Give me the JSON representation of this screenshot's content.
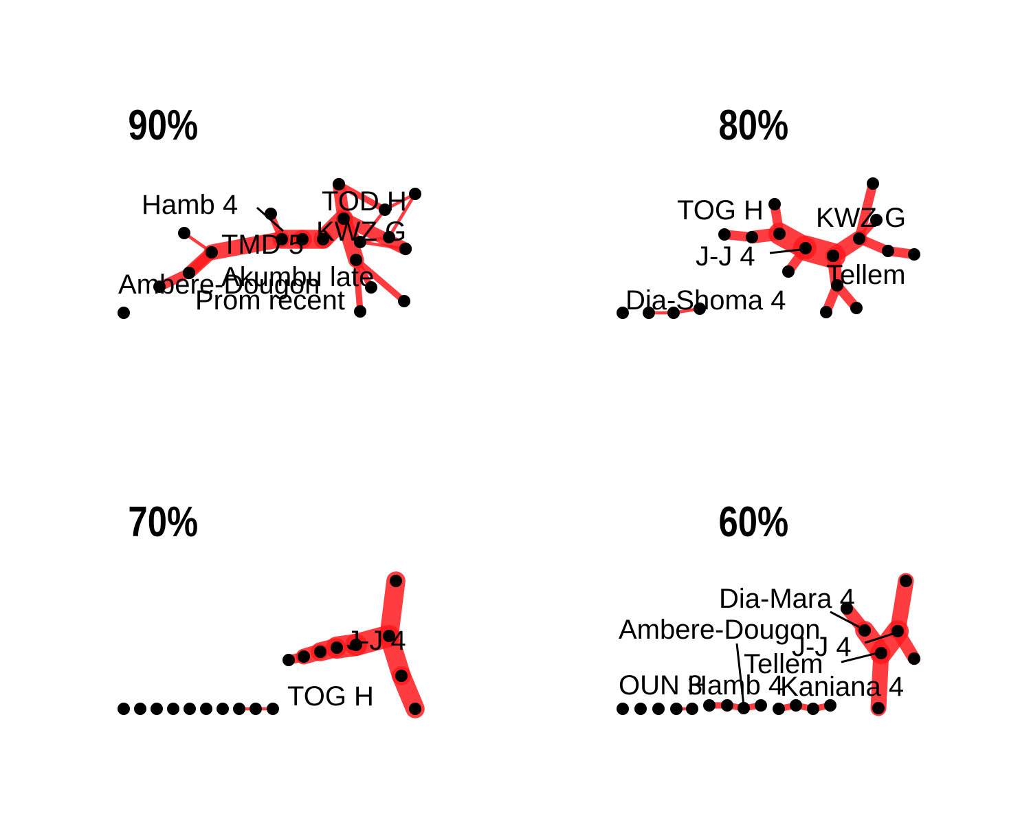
{
  "panels": [
    {
      "id": "p90",
      "title": "90%",
      "nodes": [
        {
          "id": "a1"
        },
        {
          "id": "a2"
        },
        {
          "id": "a3"
        },
        {
          "id": "a4"
        },
        {
          "id": "a5"
        },
        {
          "id": "a6"
        },
        {
          "id": "a7"
        },
        {
          "id": "a8"
        },
        {
          "id": "a9"
        },
        {
          "id": "a10"
        },
        {
          "id": "a11"
        },
        {
          "id": "a12"
        },
        {
          "id": "a13"
        },
        {
          "id": "a14"
        },
        {
          "id": "a15"
        },
        {
          "id": "a16"
        },
        {
          "id": "a17"
        },
        {
          "id": "a18"
        },
        {
          "id": "a19"
        },
        {
          "id": "a20"
        },
        {
          "id": "a21"
        },
        {
          "id": "a22"
        }
      ],
      "edges": [
        {
          "s": "a2",
          "t": "a6",
          "w": 1
        },
        {
          "s": "a3",
          "t": "a6",
          "w": 3
        },
        {
          "s": "a4",
          "t": "a5",
          "w": 3
        },
        {
          "s": "a5",
          "t": "a6",
          "w": 4
        },
        {
          "s": "a6",
          "t": "a8",
          "w": 5
        },
        {
          "s": "a8",
          "t": "a9",
          "w": 6
        },
        {
          "s": "a9",
          "t": "a10",
          "w": 6
        },
        {
          "s": "a10",
          "t": "a11",
          "w": 6
        },
        {
          "s": "a7",
          "t": "a8",
          "w": 2
        },
        {
          "s": "a11",
          "t": "a12",
          "w": 4
        },
        {
          "s": "a12",
          "t": "a13",
          "w": 2
        },
        {
          "s": "a13",
          "t": "a14",
          "w": 1
        },
        {
          "s": "a14",
          "t": "a15",
          "w": 1
        },
        {
          "s": "a15",
          "t": "a16",
          "w": 1
        },
        {
          "s": "a16",
          "t": "a13",
          "w": 1
        },
        {
          "s": "a11",
          "t": "a17",
          "w": 4
        },
        {
          "s": "a17",
          "t": "a18",
          "w": 2
        },
        {
          "s": "a11",
          "t": "a19",
          "w": 5
        },
        {
          "s": "a19",
          "t": "a20",
          "w": 2
        },
        {
          "s": "a19",
          "t": "a21",
          "w": 2
        },
        {
          "s": "a19",
          "t": "a22",
          "w": 2
        },
        {
          "s": "a17",
          "t": "a16",
          "w": 1
        },
        {
          "s": "a11",
          "t": "a16",
          "w": 2
        }
      ],
      "labels": [
        {
          "text": "Hamb 4",
          "node": "a8"
        },
        {
          "text": "TOD H",
          "node": "a14"
        },
        {
          "text": "KWZ G",
          "node": "a16"
        },
        {
          "text": "TMD 5",
          "node": "a9"
        },
        {
          "text": "Akumbu late",
          "node": "a19"
        },
        {
          "text": "Ambere-Dougon",
          "node": "a4"
        },
        {
          "text": "Prom recent",
          "node": "a21"
        }
      ]
    },
    {
      "id": "p80",
      "title": "80%",
      "nodes": [
        {
          "id": "b1"
        },
        {
          "id": "b2"
        },
        {
          "id": "b3"
        },
        {
          "id": "b4"
        },
        {
          "id": "b5"
        },
        {
          "id": "b6"
        },
        {
          "id": "b7"
        },
        {
          "id": "b8"
        },
        {
          "id": "b9"
        },
        {
          "id": "b10"
        },
        {
          "id": "b11"
        },
        {
          "id": "b12"
        },
        {
          "id": "b13"
        },
        {
          "id": "b14"
        },
        {
          "id": "b15"
        },
        {
          "id": "b16"
        },
        {
          "id": "b17"
        },
        {
          "id": "b18"
        },
        {
          "id": "b19"
        },
        {
          "id": "b20"
        }
      ],
      "edges": [
        {
          "s": "b2",
          "t": "b3",
          "w": 1
        },
        {
          "s": "b3",
          "t": "b4",
          "w": 1
        },
        {
          "s": "b5",
          "t": "b6",
          "w": 3
        },
        {
          "s": "b6",
          "t": "b7",
          "w": 4
        },
        {
          "s": "b8",
          "t": "b7",
          "w": 3
        },
        {
          "s": "b7",
          "t": "b9",
          "w": 7
        },
        {
          "s": "b10",
          "t": "b9",
          "w": 3
        },
        {
          "s": "b9",
          "t": "b11",
          "w": 8
        },
        {
          "s": "b11",
          "t": "b12",
          "w": 5
        },
        {
          "s": "b12",
          "t": "b13",
          "w": 3
        },
        {
          "s": "b12",
          "t": "b14",
          "w": 2
        },
        {
          "s": "b12",
          "t": "b15",
          "w": 3
        },
        {
          "s": "b15",
          "t": "b16",
          "w": 3
        },
        {
          "s": "b11",
          "t": "b17",
          "w": 4
        },
        {
          "s": "b17",
          "t": "b18",
          "w": 3
        },
        {
          "s": "b17",
          "t": "b19",
          "w": 3
        },
        {
          "s": "b11",
          "t": "b20",
          "w": 3
        }
      ],
      "labels": [
        {
          "text": "TOG H",
          "node": "b8"
        },
        {
          "text": "KWZ G",
          "node": "b14"
        },
        {
          "text": "J-J 4",
          "node": "b9"
        },
        {
          "text": "Tellem",
          "node": "b20"
        },
        {
          "text": "Dia-Shoma 4",
          "node": "b4"
        }
      ]
    },
    {
      "id": "p70",
      "title": "70%",
      "nodes": [
        {
          "id": "c1"
        },
        {
          "id": "c2"
        },
        {
          "id": "c3"
        },
        {
          "id": "c4"
        },
        {
          "id": "c5"
        },
        {
          "id": "c6"
        },
        {
          "id": "c7"
        },
        {
          "id": "c8"
        },
        {
          "id": "c9"
        },
        {
          "id": "c10"
        },
        {
          "id": "c11"
        },
        {
          "id": "c12"
        },
        {
          "id": "c13"
        },
        {
          "id": "c14"
        },
        {
          "id": "c15"
        },
        {
          "id": "c16"
        },
        {
          "id": "c17"
        },
        {
          "id": "c18"
        },
        {
          "id": "c19"
        }
      ],
      "edges": [
        {
          "s": "c8",
          "t": "c9",
          "w": 1
        },
        {
          "s": "c9",
          "t": "c10",
          "w": 1
        },
        {
          "s": "c11",
          "t": "c12",
          "w": 3
        },
        {
          "s": "c12",
          "t": "c13",
          "w": 5
        },
        {
          "s": "c13",
          "t": "c14",
          "w": 6
        },
        {
          "s": "c14",
          "t": "c15",
          "w": 7
        },
        {
          "s": "c15",
          "t": "c16",
          "w": 7
        },
        {
          "s": "c16",
          "t": "c17",
          "w": 6
        },
        {
          "s": "c16",
          "t": "c18",
          "w": 6
        },
        {
          "s": "c18",
          "t": "c19",
          "w": 6
        }
      ],
      "labels": [
        {
          "text": "J-J 4",
          "node": "c16"
        },
        {
          "text": "TOG H",
          "node": "c10"
        }
      ]
    },
    {
      "id": "p60",
      "title": "60%",
      "nodes": [
        {
          "id": "d1"
        },
        {
          "id": "d2"
        },
        {
          "id": "d3"
        },
        {
          "id": "d4"
        },
        {
          "id": "d5"
        },
        {
          "id": "d6"
        },
        {
          "id": "d7"
        },
        {
          "id": "d8"
        },
        {
          "id": "d9"
        },
        {
          "id": "d10"
        },
        {
          "id": "d11"
        },
        {
          "id": "d12"
        },
        {
          "id": "d13"
        },
        {
          "id": "d14"
        },
        {
          "id": "d15"
        },
        {
          "id": "d16"
        },
        {
          "id": "d17"
        },
        {
          "id": "d18"
        },
        {
          "id": "d19"
        },
        {
          "id": "d20"
        }
      ],
      "edges": [
        {
          "s": "d4",
          "t": "d5",
          "w": 1
        },
        {
          "s": "d6",
          "t": "d7",
          "w": 2
        },
        {
          "s": "d7",
          "t": "d8",
          "w": 2
        },
        {
          "s": "d8",
          "t": "d9",
          "w": 2
        },
        {
          "s": "d10",
          "t": "d11",
          "w": 2
        },
        {
          "s": "d11",
          "t": "d12",
          "w": 2
        },
        {
          "s": "d12",
          "t": "d13",
          "w": 2
        },
        {
          "s": "d14",
          "t": "d15",
          "w": 4
        },
        {
          "s": "d15",
          "t": "d16",
          "w": 6
        },
        {
          "s": "d16",
          "t": "d17",
          "w": 7
        },
        {
          "s": "d17",
          "t": "d18",
          "w": 5
        },
        {
          "s": "d17",
          "t": "d19",
          "w": 4
        },
        {
          "s": "d16",
          "t": "d20",
          "w": 5
        }
      ],
      "labels": [
        {
          "text": "Dia-Mara 4",
          "node": "d15"
        },
        {
          "text": "Ambere-Dougon",
          "node": "d8"
        },
        {
          "text": "J-J 4",
          "node": "d17"
        },
        {
          "text": "Tellem",
          "node": "d16"
        },
        {
          "text": "OUN 3",
          "node": "d1"
        },
        {
          "text": "Hamb 4",
          "node": "d9"
        },
        {
          "text": "Kaniana 4",
          "node": "d20"
        }
      ]
    }
  ]
}
